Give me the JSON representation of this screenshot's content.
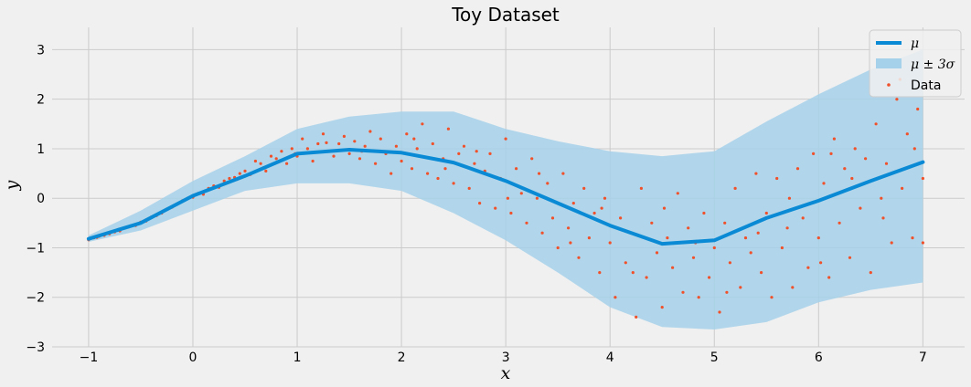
{
  "chart_data": {
    "type": "line",
    "title": "Toy Dataset",
    "xlabel": "x",
    "ylabel": "y",
    "xlim": [
      -1.35,
      7.4
    ],
    "ylim": [
      -3.0,
      3.45
    ],
    "xticks": [
      -1,
      0,
      1,
      2,
      3,
      4,
      5,
      6,
      7
    ],
    "xtick_labels": [
      "−1",
      "0",
      "1",
      "2",
      "3",
      "4",
      "5",
      "6",
      "7"
    ],
    "yticks": [
      -3,
      -2,
      -1,
      0,
      1,
      2,
      3
    ],
    "ytick_labels": [
      "−3",
      "−2",
      "−1",
      "0",
      "1",
      "2",
      "3"
    ],
    "grid": true,
    "legend_position": "top-right",
    "colors": {
      "mean": "#0a8ad4",
      "band": "#a6d1ea",
      "data": "#f0502a",
      "background": "#f0f0f0",
      "grid": "#cbcbcb"
    },
    "mean_line": {
      "name": "μ",
      "x": [
        -1.0,
        -0.5,
        0.0,
        0.5,
        1.0,
        1.5,
        2.0,
        2.5,
        3.0,
        3.5,
        4.0,
        4.5,
        5.0,
        5.5,
        6.0,
        6.5,
        7.0
      ],
      "y": [
        -0.82,
        -0.5,
        0.05,
        0.45,
        0.9,
        0.98,
        0.92,
        0.72,
        0.35,
        -0.1,
        -0.55,
        -0.92,
        -0.85,
        -0.4,
        -0.05,
        0.35,
        0.73
      ]
    },
    "band": {
      "name": "μ ± 3σ",
      "x": [
        -1.0,
        -0.5,
        0.0,
        0.5,
        1.0,
        1.5,
        2.0,
        2.5,
        3.0,
        3.5,
        4.0,
        4.5,
        5.0,
        5.5,
        6.0,
        6.5,
        7.0
      ],
      "upper": [
        -0.75,
        -0.25,
        0.35,
        0.85,
        1.4,
        1.65,
        1.75,
        1.75,
        1.4,
        1.15,
        0.95,
        0.85,
        0.95,
        1.55,
        2.1,
        2.6,
        3.0
      ],
      "lower": [
        -0.88,
        -0.65,
        -0.25,
        0.15,
        0.3,
        0.3,
        0.15,
        -0.3,
        -0.85,
        -1.5,
        -2.2,
        -2.6,
        -2.65,
        -2.5,
        -2.1,
        -1.85,
        -1.7
      ]
    },
    "scatter": {
      "name": "Data",
      "points": [
        [
          -1.0,
          -0.84
        ],
        [
          -0.95,
          -0.8
        ],
        [
          -0.9,
          -0.77
        ],
        [
          -0.85,
          -0.75
        ],
        [
          -0.8,
          -0.72
        ],
        [
          -0.75,
          -0.68
        ],
        [
          -0.7,
          -0.66
        ],
        [
          -0.65,
          -0.6
        ],
        [
          -0.6,
          -0.56
        ],
        [
          -0.55,
          -0.55
        ],
        [
          -0.5,
          -0.48
        ],
        [
          -0.45,
          -0.46
        ],
        [
          -0.4,
          -0.38
        ],
        [
          -0.35,
          -0.35
        ],
        [
          -0.3,
          -0.3
        ],
        [
          -0.25,
          -0.22
        ],
        [
          -0.2,
          -0.18
        ],
        [
          -0.15,
          -0.12
        ],
        [
          -0.1,
          -0.05
        ],
        [
          -0.05,
          0.0
        ],
        [
          0.0,
          0.02
        ],
        [
          0.05,
          0.1
        ],
        [
          0.1,
          0.08
        ],
        [
          0.15,
          0.2
        ],
        [
          0.2,
          0.25
        ],
        [
          0.25,
          0.22
        ],
        [
          0.3,
          0.35
        ],
        [
          0.35,
          0.4
        ],
        [
          0.4,
          0.42
        ],
        [
          0.45,
          0.5
        ],
        [
          0.5,
          0.55
        ],
        [
          0.55,
          0.48
        ],
        [
          0.6,
          0.75
        ],
        [
          0.65,
          0.7
        ],
        [
          0.7,
          0.55
        ],
        [
          0.75,
          0.85
        ],
        [
          0.8,
          0.8
        ],
        [
          0.85,
          0.95
        ],
        [
          0.9,
          0.7
        ],
        [
          0.95,
          1.0
        ],
        [
          1.0,
          0.85
        ],
        [
          1.05,
          1.2
        ],
        [
          1.1,
          1.0
        ],
        [
          1.15,
          0.75
        ],
        [
          1.2,
          1.1
        ],
        [
          1.25,
          1.3
        ],
        [
          1.3,
          0.95
        ],
        [
          1.35,
          0.85
        ],
        [
          1.4,
          1.1
        ],
        [
          1.45,
          1.25
        ],
        [
          1.5,
          0.9
        ],
        [
          1.55,
          1.15
        ],
        [
          1.6,
          0.8
        ],
        [
          1.65,
          1.05
        ],
        [
          1.7,
          1.35
        ],
        [
          1.75,
          0.7
        ],
        [
          1.8,
          1.2
        ],
        [
          1.85,
          0.9
        ],
        [
          1.9,
          0.5
        ],
        [
          1.95,
          1.05
        ],
        [
          2.0,
          0.75
        ],
        [
          2.05,
          1.3
        ],
        [
          2.1,
          0.6
        ],
        [
          2.15,
          1.0
        ],
        [
          2.2,
          1.5
        ],
        [
          2.25,
          0.5
        ],
        [
          2.3,
          1.1
        ],
        [
          2.35,
          0.4
        ],
        [
          2.4,
          0.8
        ],
        [
          2.45,
          1.4
        ],
        [
          2.5,
          0.3
        ],
        [
          2.55,
          0.9
        ],
        [
          2.6,
          1.05
        ],
        [
          2.65,
          0.2
        ],
        [
          2.7,
          0.7
        ],
        [
          2.75,
          -0.1
        ],
        [
          2.8,
          0.55
        ],
        [
          2.85,
          0.9
        ],
        [
          2.9,
          -0.2
        ],
        [
          2.95,
          0.4
        ],
        [
          3.0,
          1.2
        ],
        [
          3.05,
          -0.3
        ],
        [
          3.1,
          0.6
        ],
        [
          3.15,
          0.1
        ],
        [
          3.2,
          -0.5
        ],
        [
          3.25,
          0.8
        ],
        [
          3.3,
          0.0
        ],
        [
          3.35,
          -0.7
        ],
        [
          3.4,
          0.3
        ],
        [
          3.45,
          -0.4
        ],
        [
          3.5,
          -1.0
        ],
        [
          3.55,
          0.5
        ],
        [
          3.6,
          -0.6
        ],
        [
          3.65,
          -0.1
        ],
        [
          3.7,
          -1.2
        ],
        [
          3.75,
          0.2
        ],
        [
          3.8,
          -0.8
        ],
        [
          3.85,
          -0.3
        ],
        [
          3.9,
          -1.5
        ],
        [
          3.95,
          0.0
        ],
        [
          4.0,
          -0.9
        ],
        [
          4.05,
          -2.0
        ],
        [
          4.1,
          -0.4
        ],
        [
          4.15,
          -1.3
        ],
        [
          4.2,
          -0.7
        ],
        [
          4.25,
          -2.4
        ],
        [
          4.3,
          0.2
        ],
        [
          4.35,
          -1.6
        ],
        [
          4.4,
          -0.5
        ],
        [
          4.45,
          -1.1
        ],
        [
          4.5,
          -2.2
        ],
        [
          4.55,
          -0.8
        ],
        [
          4.6,
          -1.4
        ],
        [
          4.65,
          0.1
        ],
        [
          4.7,
          -1.9
        ],
        [
          4.75,
          -0.6
        ],
        [
          4.8,
          -1.2
        ],
        [
          4.85,
          -2.0
        ],
        [
          4.9,
          -0.3
        ],
        [
          4.95,
          -1.6
        ],
        [
          5.0,
          -1.0
        ],
        [
          5.05,
          -2.3
        ],
        [
          5.1,
          -0.5
        ],
        [
          5.15,
          -1.3
        ],
        [
          5.2,
          0.2
        ],
        [
          5.25,
          -1.8
        ],
        [
          5.3,
          -0.8
        ],
        [
          5.35,
          -1.1
        ],
        [
          5.4,
          0.5
        ],
        [
          5.45,
          -1.5
        ],
        [
          5.5,
          -0.3
        ],
        [
          5.55,
          -2.0
        ],
        [
          5.6,
          0.4
        ],
        [
          5.65,
          -1.0
        ],
        [
          5.7,
          -0.6
        ],
        [
          5.75,
          -1.8
        ],
        [
          5.8,
          0.6
        ],
        [
          5.85,
          -0.4
        ],
        [
          5.9,
          -1.4
        ],
        [
          5.95,
          0.9
        ],
        [
          6.0,
          -0.8
        ],
        [
          6.05,
          0.3
        ],
        [
          6.1,
          -1.6
        ],
        [
          6.15,
          1.2
        ],
        [
          6.2,
          -0.5
        ],
        [
          6.25,
          0.6
        ],
        [
          6.3,
          -1.2
        ],
        [
          6.35,
          1.0
        ],
        [
          6.4,
          -0.2
        ],
        [
          6.45,
          0.8
        ],
        [
          6.5,
          -1.5
        ],
        [
          6.55,
          1.5
        ],
        [
          6.6,
          0.0
        ],
        [
          6.65,
          0.7
        ],
        [
          6.7,
          -0.9
        ],
        [
          6.75,
          2.0
        ],
        [
          6.8,
          0.2
        ],
        [
          6.85,
          1.3
        ],
        [
          6.9,
          -0.8
        ],
        [
          6.95,
          1.8
        ],
        [
          7.0,
          0.4
        ],
        [
          -0.92,
          -0.79
        ],
        [
          -0.62,
          -0.58
        ],
        [
          -0.28,
          -0.26
        ],
        [
          0.12,
          0.15
        ],
        [
          0.42,
          0.38
        ],
        [
          0.68,
          0.62
        ],
        [
          0.98,
          0.9
        ],
        [
          1.28,
          1.12
        ],
        [
          1.62,
          0.95
        ],
        [
          2.12,
          1.2
        ],
        [
          2.42,
          0.6
        ],
        [
          2.72,
          0.95
        ],
        [
          3.02,
          0.0
        ],
        [
          3.32,
          0.5
        ],
        [
          3.62,
          -0.9
        ],
        [
          3.92,
          -0.2
        ],
        [
          4.22,
          -1.5
        ],
        [
          4.52,
          -0.2
        ],
        [
          4.82,
          -0.9
        ],
        [
          5.12,
          -1.9
        ],
        [
          5.42,
          -0.7
        ],
        [
          5.72,
          0.0
        ],
        [
          6.02,
          -1.3
        ],
        [
          6.32,
          0.4
        ],
        [
          6.62,
          -0.4
        ],
        [
          6.92,
          1.0
        ],
        [
          7.0,
          -0.9
        ],
        [
          6.78,
          2.4
        ],
        [
          6.12,
          0.9
        ]
      ]
    }
  }
}
